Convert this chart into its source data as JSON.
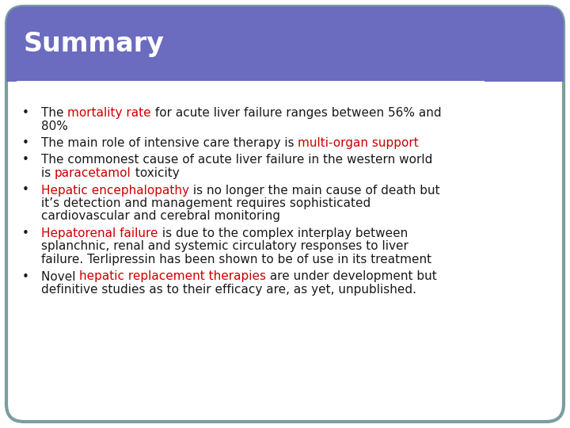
{
  "title": "Summary",
  "title_color": "#ffffff",
  "title_bg_color": "#6B6BBF",
  "body_bg_color": "#ffffff",
  "border_color": "#7a9e9f",
  "line_color": "#ffffff",
  "figsize": [
    7.2,
    5.4
  ],
  "dpi": 100,
  "title_fontsize": 24,
  "text_fontsize": 11.0,
  "bullet_char": "•",
  "bullet_points": [
    {
      "lines": [
        [
          {
            "text": "The ",
            "color": "#1a1a1a"
          },
          {
            "text": "mortality rate",
            "color": "#cc0000"
          },
          {
            "text": " for acute liver failure ranges between 56% and",
            "color": "#1a1a1a"
          }
        ],
        [
          {
            "text": "80%",
            "color": "#1a1a1a"
          }
        ]
      ]
    },
    {
      "lines": [
        [
          {
            "text": "The main role of intensive care therapy is ",
            "color": "#1a1a1a"
          },
          {
            "text": "multi-organ support",
            "color": "#cc0000"
          }
        ]
      ]
    },
    {
      "lines": [
        [
          {
            "text": "The commonest cause of acute liver failure in the western world",
            "color": "#1a1a1a"
          }
        ],
        [
          {
            "text": "is ",
            "color": "#1a1a1a"
          },
          {
            "text": "paracetamol",
            "color": "#cc0000"
          },
          {
            "text": " toxicity",
            "color": "#1a1a1a"
          }
        ]
      ]
    },
    {
      "lines": [
        [
          {
            "text": "Hepatic encephalopathy",
            "color": "#cc0000"
          },
          {
            "text": " is no longer the main cause of death but",
            "color": "#1a1a1a"
          }
        ],
        [
          {
            "text": "it’s detection and management requires sophisticated",
            "color": "#1a1a1a"
          }
        ],
        [
          {
            "text": "cardiovascular and cerebral monitoring",
            "color": "#1a1a1a"
          }
        ]
      ]
    },
    {
      "lines": [
        [
          {
            "text": "Hepatorenal failure",
            "color": "#cc0000"
          },
          {
            "text": " is due to the complex interplay between",
            "color": "#1a1a1a"
          }
        ],
        [
          {
            "text": "splanchnic, renal and systemic circulatory responses to liver",
            "color": "#1a1a1a"
          }
        ],
        [
          {
            "text": "failure. Terlipressin has been shown to be of use in its treatment",
            "color": "#1a1a1a"
          }
        ]
      ]
    },
    {
      "lines": [
        [
          {
            "text": "Novel ",
            "color": "#1a1a1a"
          },
          {
            "text": "hepatic replacement therapies",
            "color": "#cc0000"
          },
          {
            "text": " are under development but",
            "color": "#1a1a1a"
          }
        ],
        [
          {
            "text": "definitive studies as to their efficacy are, as yet, unpublished.",
            "color": "#1a1a1a"
          }
        ]
      ]
    }
  ]
}
